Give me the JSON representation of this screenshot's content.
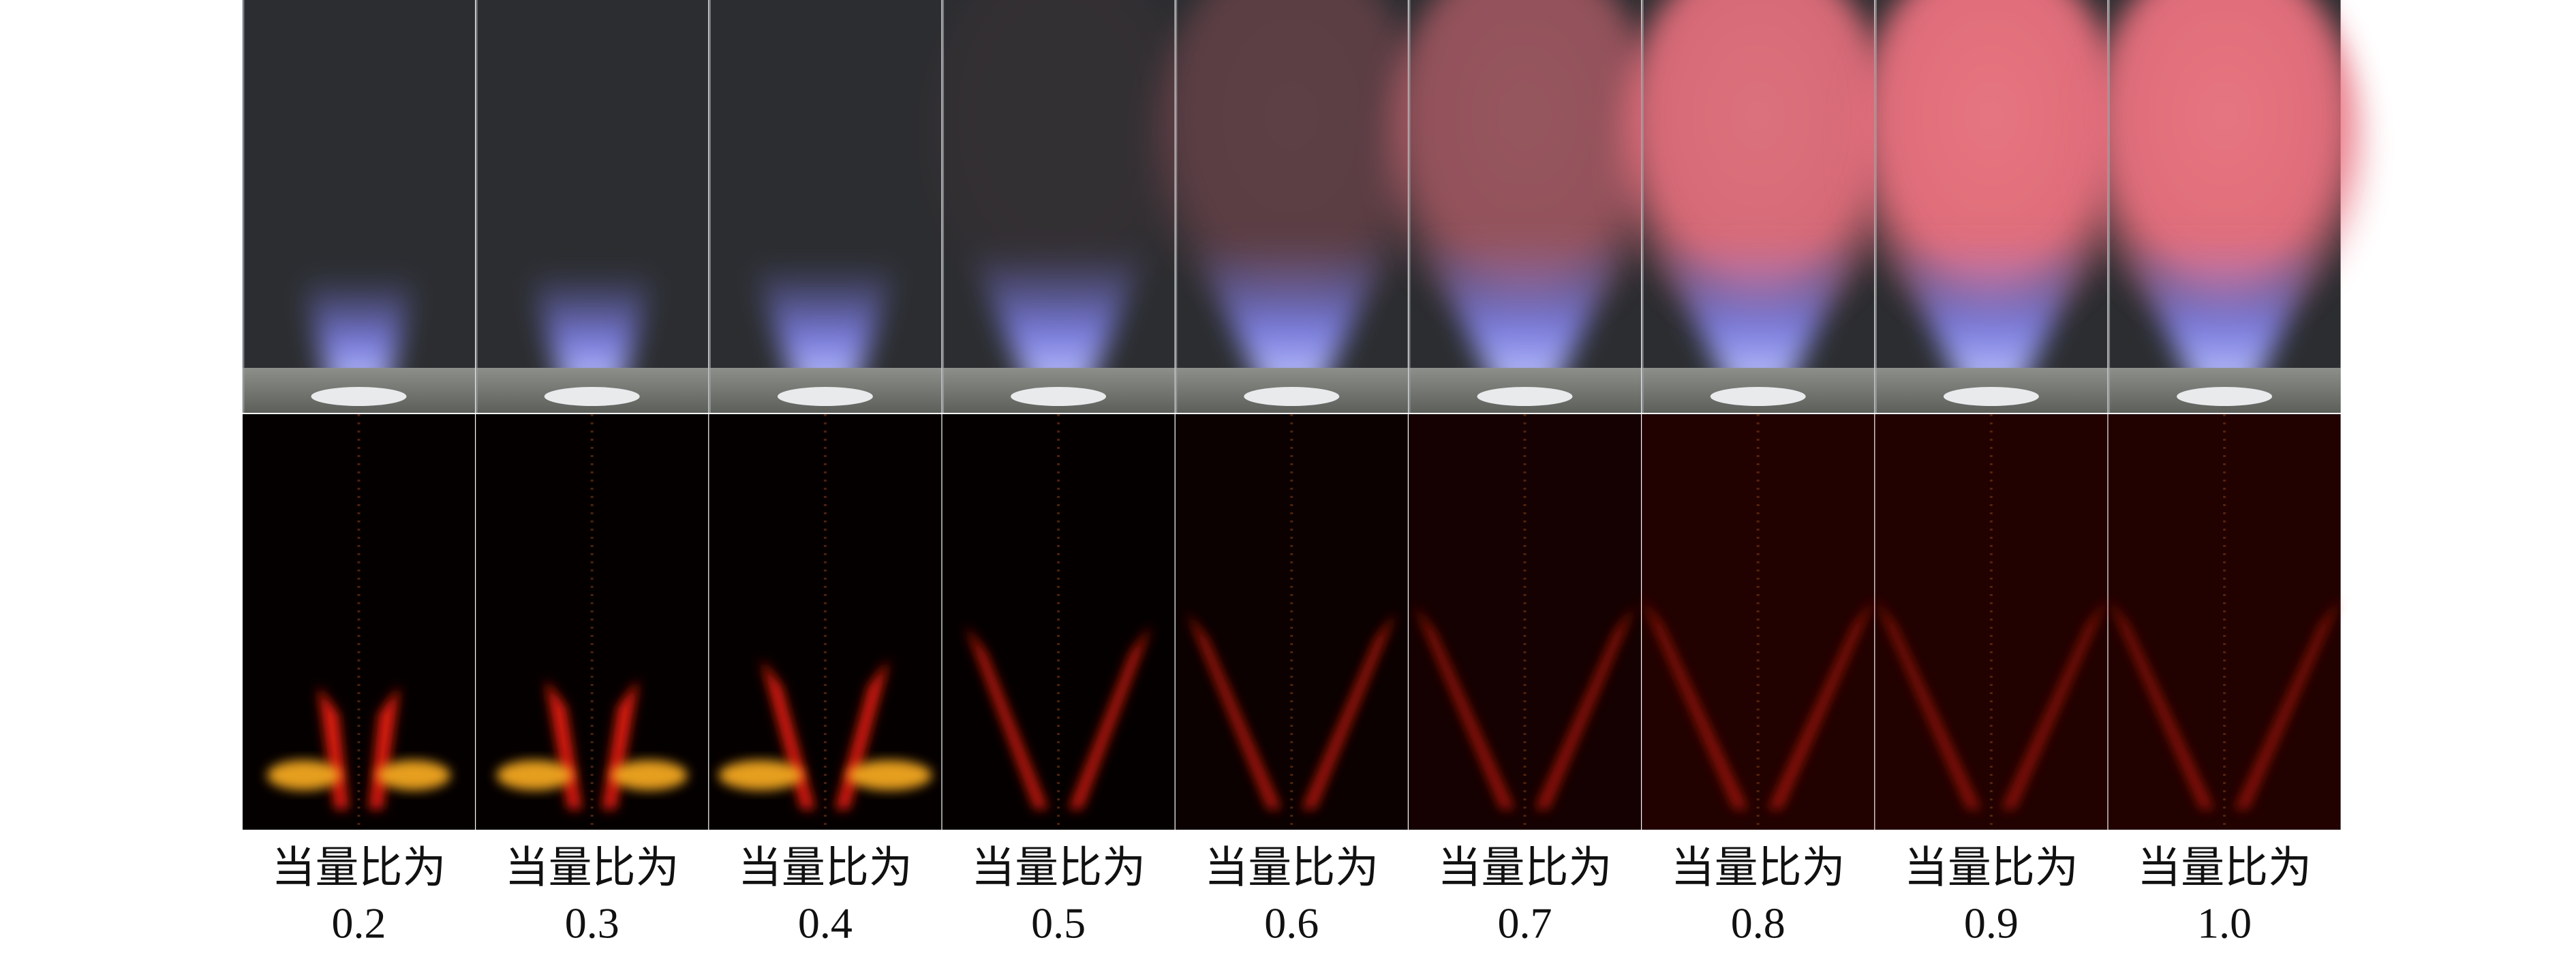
{
  "panels": [
    {
      "caption": "当量比为",
      "ratio": "0.2"
    },
    {
      "caption": "当量比为",
      "ratio": "0.3"
    },
    {
      "caption": "当量比为",
      "ratio": "0.4"
    },
    {
      "caption": "当量比为",
      "ratio": "0.5"
    },
    {
      "caption": "当量比为",
      "ratio": "0.6"
    },
    {
      "caption": "当量比为",
      "ratio": "0.7"
    },
    {
      "caption": "当量比为",
      "ratio": "0.8"
    },
    {
      "caption": "当量比为",
      "ratio": "0.9"
    },
    {
      "caption": "当量比为",
      "ratio": "1.0"
    }
  ]
}
